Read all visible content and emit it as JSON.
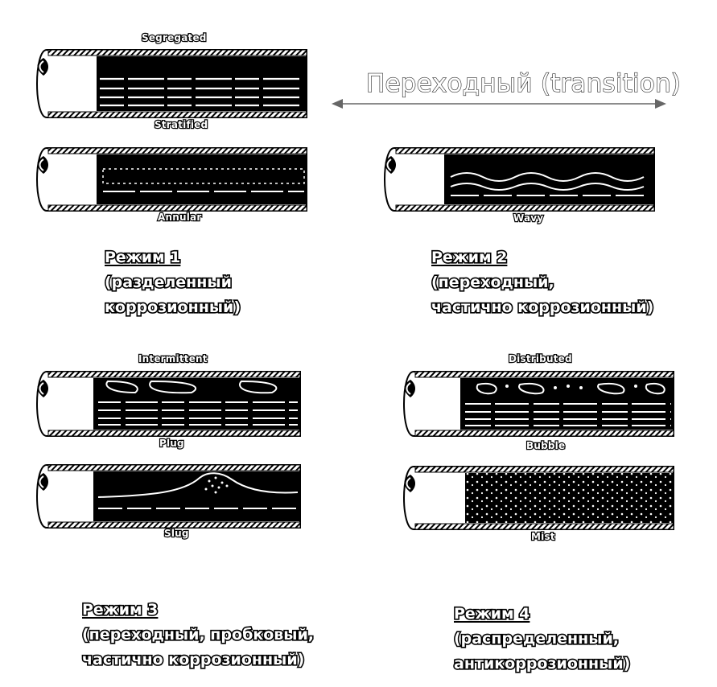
{
  "transition": {
    "label": "Переходный (transition)"
  },
  "captions": {
    "segregated": "Segregated",
    "stratified": "Stratified",
    "annular": "Annular",
    "wavy": "Wavy",
    "intermittent": "Intermittent",
    "plug": "Plug",
    "slug": "Slug",
    "distributed": "Distributed",
    "bubble": "Bubble",
    "mist": "Mist"
  },
  "regimes": [
    {
      "title": "Режим 1",
      "line1": "(разделенный",
      "line2": "коррозионный)"
    },
    {
      "title": "Режим 2",
      "line1": "(переходный,",
      "line2": "частично коррозионный)"
    },
    {
      "title": "Режим 3",
      "line1": "(переходный, пробковый,",
      "line2": "частично коррозионный)"
    },
    {
      "title": "Режим 4",
      "line1": "(распределенный,",
      "line2": "антикоррозионный)"
    }
  ]
}
